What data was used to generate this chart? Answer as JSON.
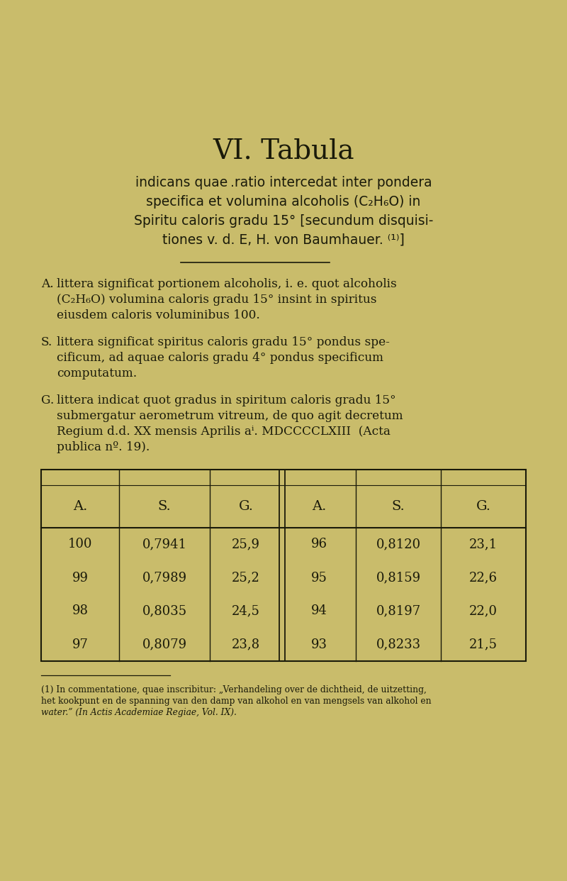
{
  "bg_color": "#c9bc6b",
  "title": "VI. Tabula",
  "subtitle_lines": [
    "indicans quae .ratio intercedat inter pondera",
    "specifica et volumina alcoholis (C₂H₆O) in",
    "Spiritu caloris gradu 15° [secundum disquisi-",
    "tiones v. d. E, H. von Baumhauer. ⁽¹⁾]"
  ],
  "table_headers": [
    "A.",
    "S.",
    "G.",
    "A.",
    "S.",
    "G."
  ],
  "table_data": [
    [
      "100",
      "0,7941",
      "25,9",
      "96",
      "0,8120",
      "23,1"
    ],
    [
      "99",
      "0,7989",
      "25,2",
      "95",
      "0,8159",
      "22,6"
    ],
    [
      "98",
      "0,8035",
      "24,5",
      "94",
      "0,8197",
      "22,0"
    ],
    [
      "97",
      "0,8079",
      "23,8",
      "93",
      "0,8233",
      "21,5"
    ]
  ],
  "section_A_label": "A.",
  "section_A_line1": "littera significat portionem alcoholis, i. e. quot alcoholis",
  "section_A_line2": "(C₂H₆O) volumina caloris gradu 15° insint in spiritus",
  "section_A_line3": "eiusdem caloris voluminibus 100.",
  "section_S_label": "S.",
  "section_S_line1": "littera significat spiritus caloris gradu 15° pondus spe-",
  "section_S_line2": "cificum, ad aquae caloris gradu 4° pondus specificum",
  "section_S_line3": "computatum.",
  "section_G_label": "G.",
  "section_G_line1": "littera indicat quot gradus in spiritum caloris gradu 15°",
  "section_G_line2": "submergatur aerometrum vitreum, de quo agit decretum",
  "section_G_line3": "Regium d.d. XX mensis Aprilis aⁱ. MDCCCCLXIII  (Acta",
  "section_G_line4": "publica nº. 19).",
  "footnote_line1": "(1) In commentatione, quae inscribitur: „Verhandeling over de dichtheid, de uitzetting,",
  "footnote_line2": "het kookpunt en de spanning van den damp van alkohol en van mengsels van alkohol en",
  "footnote_line3": "water.” (In Actis Academiae Regiae, Vol. IX).",
  "text_color": "#1a1a0a"
}
